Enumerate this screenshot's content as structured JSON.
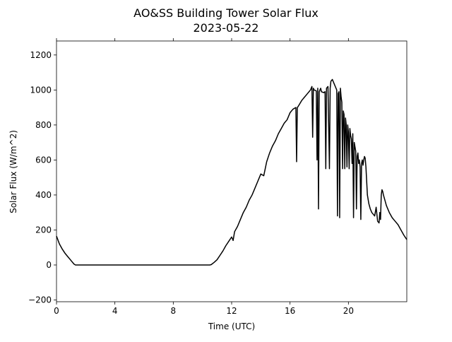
{
  "chart_data": {
    "type": "line",
    "title": "AO&SS Building Tower Solar Flux",
    "subtitle": "2023-05-22",
    "xlabel": "Time (UTC)",
    "ylabel": "Solar Flux (W/m^2)",
    "xlim": [
      0,
      24
    ],
    "ylim": [
      -210,
      1280
    ],
    "xticks": [
      0,
      4,
      8,
      12,
      16,
      20
    ],
    "yticks": [
      -200,
      0,
      200,
      400,
      600,
      800,
      1000,
      1200
    ],
    "grid": false,
    "line_color": "#000000",
    "series": [
      {
        "x": [
          0,
          0.2,
          0.4,
          0.6,
          0.8,
          1.0,
          1.2,
          1.3,
          1.5,
          2,
          4,
          6,
          8,
          10,
          10.5,
          10.6,
          10.8,
          11.0,
          11.2,
          11.4,
          11.6,
          11.8,
          12.0,
          12.1,
          12.2,
          12.4,
          12.6,
          12.8,
          13.0,
          13.2,
          13.4,
          13.6,
          13.8,
          14.0,
          14.2,
          14.4,
          14.6,
          14.8,
          15.0,
          15.2,
          15.4,
          15.6,
          15.8,
          16.0,
          16.2,
          16.4,
          16.45,
          16.5,
          16.55,
          16.8,
          17.0,
          17.2,
          17.4,
          17.5,
          17.55,
          17.6,
          17.65,
          17.8,
          17.85,
          17.9,
          17.95,
          18.0,
          18.05,
          18.1,
          18.15,
          18.3,
          18.4,
          18.45,
          18.5,
          18.6,
          18.7,
          18.75,
          18.8,
          18.9,
          19.0,
          19.1,
          19.2,
          19.25,
          19.3,
          19.35,
          19.4,
          19.45,
          19.5,
          19.55,
          19.6,
          19.65,
          19.7,
          19.75,
          19.8,
          19.85,
          19.9,
          19.95,
          20.0,
          20.05,
          20.1,
          20.15,
          20.2,
          20.25,
          20.3,
          20.35,
          20.4,
          20.5,
          20.55,
          20.6,
          20.65,
          20.7,
          20.75,
          20.8,
          20.85,
          20.9,
          20.95,
          21.0,
          21.05,
          21.1,
          21.15,
          21.2,
          21.3,
          21.4,
          21.5,
          21.6,
          21.7,
          21.8,
          21.9,
          22.0,
          22.1,
          22.15,
          22.2,
          22.25,
          22.3,
          22.35,
          22.4,
          22.5,
          22.6,
          22.8,
          23.0,
          23.2,
          23.4,
          23.6,
          23.8,
          24.0
        ],
        "y": [
          165,
          120,
          90,
          65,
          45,
          25,
          5,
          0,
          0,
          0,
          0,
          0,
          0,
          0,
          0,
          2,
          15,
          30,
          55,
          80,
          110,
          135,
          160,
          140,
          190,
          220,
          260,
          300,
          330,
          370,
          400,
          440,
          480,
          520,
          510,
          590,
          640,
          680,
          710,
          750,
          780,
          810,
          830,
          870,
          890,
          900,
          590,
          900,
          905,
          940,
          960,
          980,
          1000,
          1020,
          730,
          1010,
          1000,
          995,
          600,
          1010,
          320,
          990,
          1000,
          1010,
          990,
          985,
          990,
          550,
          1010,
          1020,
          550,
          1010,
          1050,
          1060,
          1040,
          1020,
          1000,
          280,
          980,
          990,
          270,
          1010,
          960,
          930,
          550,
          880,
          860,
          550,
          840,
          800,
          560,
          800,
          760,
          550,
          780,
          740,
          720,
          580,
          750,
          270,
          700,
          650,
          320,
          620,
          640,
          580,
          600,
          560,
          260,
          580,
          600,
          570,
          600,
          620,
          610,
          560,
          400,
          350,
          320,
          300,
          290,
          280,
          330,
          250,
          240,
          300,
          260,
          400,
          430,
          420,
          400,
          370,
          340,
          300,
          270,
          250,
          230,
          200,
          170,
          145
        ]
      }
    ]
  }
}
